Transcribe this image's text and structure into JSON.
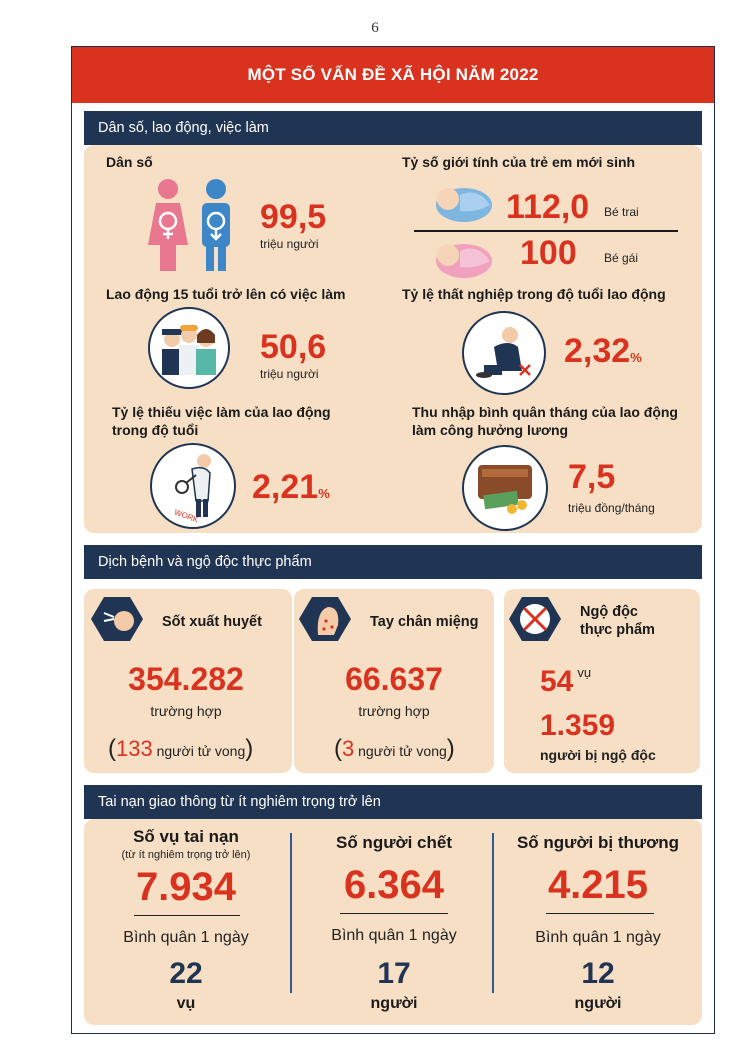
{
  "page_number": "6",
  "title": "MỘT SỐ VẤN ĐỀ XÃ HỘI NĂM 2022",
  "section1": {
    "header": "Dân số, lao động, việc làm",
    "population": {
      "label": "Dân số",
      "value": "99,5",
      "unit": "triệu người"
    },
    "sex_ratio": {
      "label": "Tỷ số giới tính của trẻ em mới sinh",
      "boys_value": "112,0",
      "boys_label": "Bé trai",
      "girls_value": "100",
      "girls_label": "Bé gái"
    },
    "employed": {
      "label": "Lao động 15 tuổi trở lên có việc làm",
      "value": "50,6",
      "unit": "triệu người"
    },
    "unemployment": {
      "label": "Tỷ lệ thất nghiệp trong độ tuổi lao động",
      "value": "2,32",
      "unit": "%"
    },
    "underemployment": {
      "label_line1": "Tỷ lệ thiếu việc làm của lao động",
      "label_line2": "trong độ tuổi",
      "value": "2,21",
      "unit": "%",
      "icon_text": "WORK"
    },
    "income": {
      "label_line1": "Thu nhập bình quân tháng của lao động",
      "label_line2": "làm công hưởng lương",
      "value": "7,5",
      "unit": "triệu đồng/tháng"
    }
  },
  "section2": {
    "header": "Dịch bệnh và ngộ độc thực phẩm",
    "dengue": {
      "title": "Sốt xuất huyết",
      "value": "354.282",
      "unit": "trường hợp",
      "deaths_value": "133",
      "deaths_text": "người tử vong"
    },
    "hfmd": {
      "title": "Tay chân miệng",
      "value": "66.637",
      "unit": "trường hợp",
      "deaths_value": "3",
      "deaths_text": "người tử vong"
    },
    "food_poisoning": {
      "title_line1": "Ngộ độc",
      "title_line2": "thực phẩm",
      "cases_value": "54",
      "cases_unit": "vụ",
      "people_value": "1.359",
      "people_unit": "người bị ngộ độc"
    }
  },
  "section3": {
    "header": "Tai nạn giao thông từ ít nghiêm trọng trở lên",
    "columns": [
      {
        "title": "Số vụ tai nạn",
        "note": "(từ ít nghiêm trọng trở lên)",
        "value": "7.934",
        "sub": "Bình quân 1 ngày",
        "daily": "22",
        "daily_unit": "vụ"
      },
      {
        "title": "Số người chết",
        "note": "",
        "value": "6.364",
        "sub": "Bình quân 1 ngày",
        "daily": "17",
        "daily_unit": "người"
      },
      {
        "title": "Số người bị thương",
        "note": "",
        "value": "4.215",
        "sub": "Bình quân 1 ngày",
        "daily": "12",
        "daily_unit": "người"
      }
    ]
  },
  "colors": {
    "red": "#d9331f",
    "navy": "#203553",
    "panel": "#f6dfc5",
    "female": "#e8778f",
    "male": "#3d87c9"
  },
  "icons": [
    "female-figure-icon",
    "male-figure-icon",
    "baby-boy-icon",
    "baby-girl-icon",
    "workers-icon",
    "unemployed-man-icon",
    "magnifier-man-icon",
    "wallet-money-icon",
    "mosquito-icon",
    "hand-foot-mouth-icon",
    "food-poisoning-icon"
  ]
}
